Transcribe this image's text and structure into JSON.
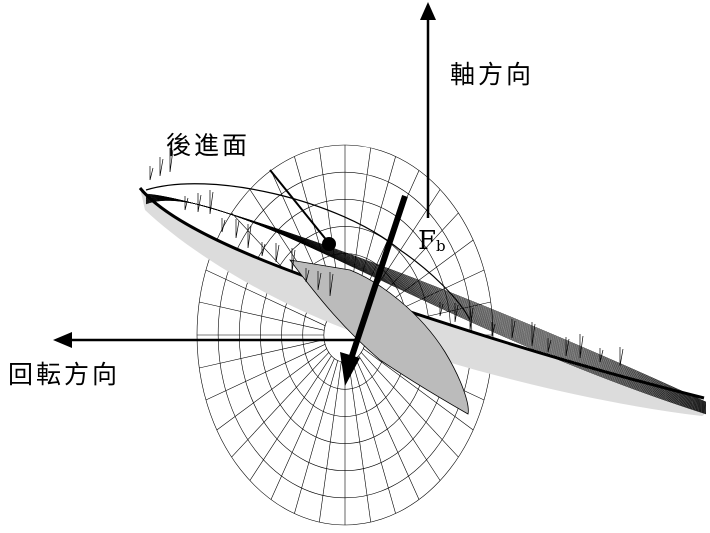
{
  "labels": {
    "axial_direction": "軸方向",
    "back_face": "後進面",
    "rotation_direction": "回転方向",
    "force_main": "F",
    "force_sub": "b"
  },
  "colors": {
    "line": "#000000",
    "background": "#ffffff"
  }
}
